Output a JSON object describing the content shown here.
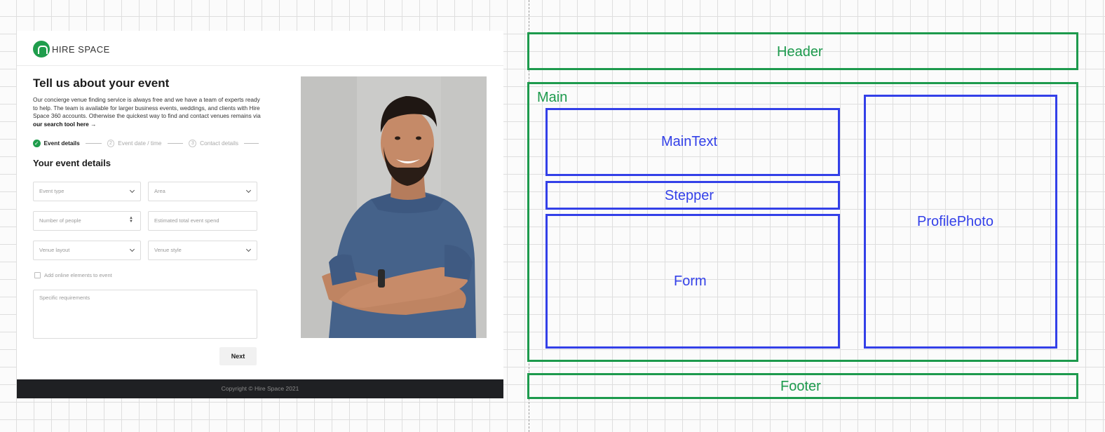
{
  "mockup": {
    "header": {
      "logo_text": "HIRE SPACE",
      "logo_icon": "house-icon"
    },
    "title": "Tell us about your event",
    "intro": {
      "text": "Our concierge venue finding service is always free and we have a team of experts ready to help. The team is available for larger business events, weddings, and clients with Hire Space 360 accounts. Otherwise the quickest way to find and contact venues remains via ",
      "link": "our search tool here →"
    },
    "stepper": {
      "steps": [
        {
          "number": "✓",
          "label": "Event details",
          "state": "done"
        },
        {
          "number": "2",
          "label": "Event date / time",
          "state": "pending"
        },
        {
          "number": "3",
          "label": "Contact details",
          "state": "pending"
        }
      ]
    },
    "section_title": "Your event details",
    "form": {
      "event_type": {
        "placeholder": "Event type"
      },
      "area": {
        "placeholder": "Area"
      },
      "number_of_people": {
        "placeholder": "Number of people"
      },
      "estimated_spend": {
        "placeholder": "Estimated total event spend"
      },
      "venue_layout": {
        "placeholder": "Venue layout"
      },
      "venue_style": {
        "placeholder": "Venue style"
      },
      "online_checkbox_label": "Add online elements to event",
      "requirements": {
        "placeholder": "Specific requirements"
      },
      "next_label": "Next"
    },
    "footer": {
      "copyright": "Copyright © Hire Space 2021"
    },
    "colors": {
      "brand_green": "#1f9d4c",
      "footer_bg": "#1f2023"
    }
  },
  "wireframe": {
    "header": "Header",
    "main": "Main",
    "main_text": "MainText",
    "stepper": "Stepper",
    "form": "Form",
    "profile_photo": "ProfilePhoto",
    "footer": "Footer",
    "colors": {
      "section": "#1d9a4d",
      "component": "#3340e8"
    }
  }
}
